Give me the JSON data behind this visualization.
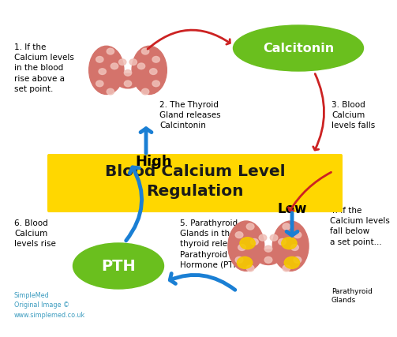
{
  "title": "Blood Calcium Level\nRegulation",
  "title_color": "#1a1a1a",
  "title_bg_color": "#FFD700",
  "calcitonin_label": "Calcitonin",
  "pth_label": "PTH",
  "high_label": "High",
  "low_label": "Low",
  "label1": "1. If the\nCalcium levels\nin the blood\nrise above a\nset point.",
  "label2": "2. The Thyroid\nGland releases\nCalcintonin",
  "label3": "3. Blood\nCalcium\nlevels falls",
  "label4": "4. If the\nCalcium levels\nfall below\na set point...",
  "label5": "5. Parathyroid\nGlands in the\nthyroid release\nParathyroid\nHormone (PTH)",
  "label6": "6. Blood\nCalcium\nlevels rise",
  "parathyroid_label": "Parathyroid\nGlands",
  "simplemed_label": "SimpleMed\nOriginal Image ©\nwww.simplemed.co.uk",
  "bg_color": "#ffffff",
  "green_color": "#6abf1e",
  "arrow_red_color": "#cc2222",
  "arrow_blue_color": "#1a7fd4",
  "text_color": "#000000",
  "thyroid_color": "#d4736b",
  "thyroid_spot_color": "#f0c0b8",
  "yellow_spot_color": "#f5c800"
}
